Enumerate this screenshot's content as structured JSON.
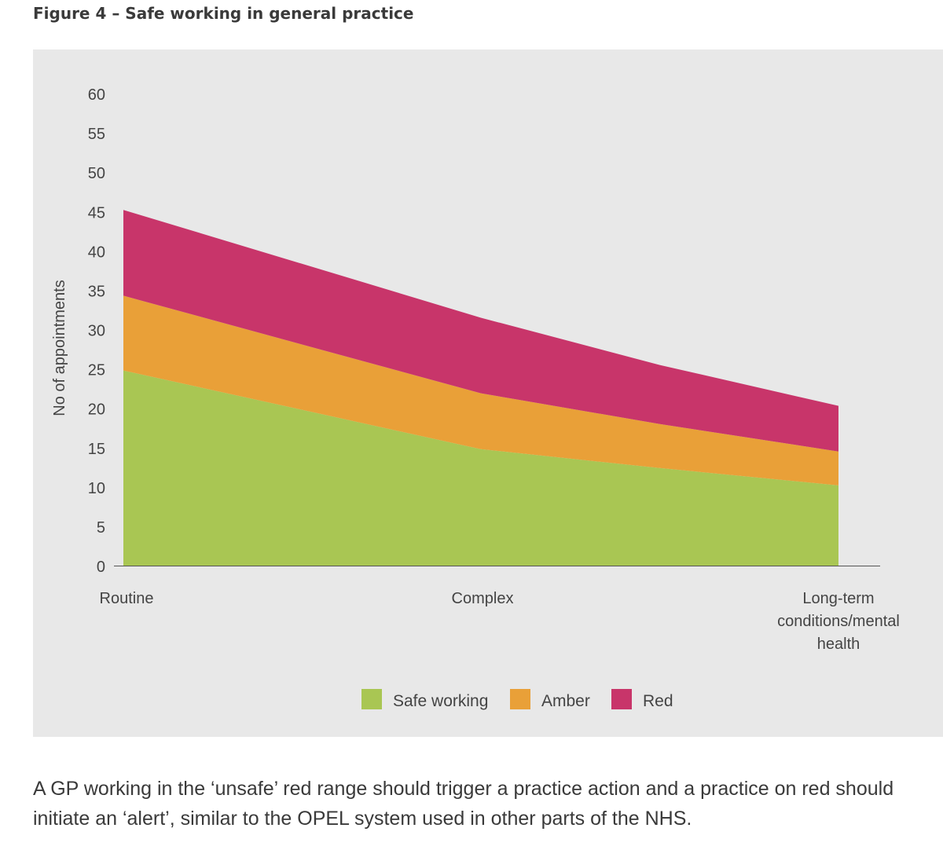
{
  "title": "Figure 4 – Safe working in general practice",
  "caption": "A GP working in the ‘unsafe’ red range should trigger a practice action and a practice on red should initiate an ‘alert’, similar to the OPEL system used in other parts of the NHS.",
  "chart_data": {
    "type": "area",
    "stacked": true,
    "title": "Figure 4 – Safe working in general practice",
    "xlabel": "",
    "ylabel": "No of appointments",
    "ylim": [
      0,
      60
    ],
    "yticks": [
      0,
      5,
      10,
      15,
      20,
      25,
      30,
      35,
      40,
      45,
      50,
      55,
      60
    ],
    "categories": [
      "Routine",
      "Complex",
      "Long-term conditions/mental health"
    ],
    "x": [
      0,
      1,
      1.5,
      2
    ],
    "series": [
      {
        "name": "Safe working",
        "color": "#a9c653",
        "values": [
          24.8,
          14.8,
          12.4,
          10.2
        ]
      },
      {
        "name": "Amber",
        "color": "#e9a038",
        "values": [
          9.5,
          7.1,
          5.6,
          4.3
        ]
      },
      {
        "name": "Red",
        "color": "#c8356a",
        "values": [
          10.9,
          9.6,
          7.5,
          5.8
        ]
      }
    ],
    "legend_position": "bottom-center",
    "grid": false
  }
}
